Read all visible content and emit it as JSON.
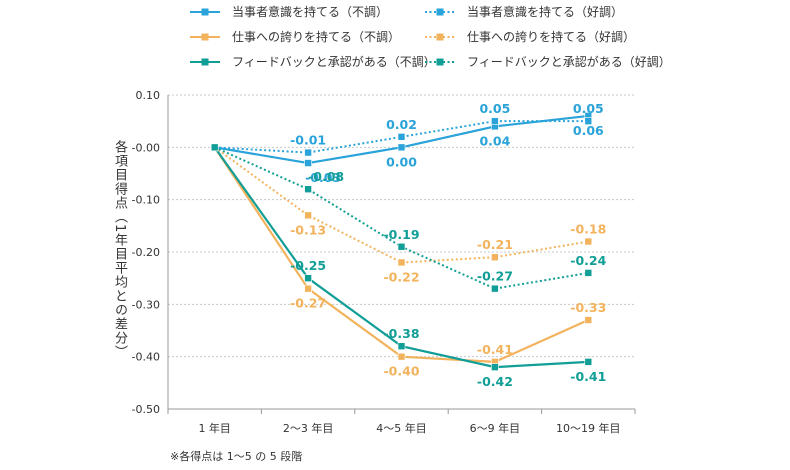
{
  "chart_data": {
    "type": "line",
    "ylabel": "各項目得点（1年目平均との差分）",
    "note": "※各得点は 1〜5 の 5 段階",
    "categories": [
      "1 年目",
      "2〜3 年目",
      "4〜5 年目",
      "6〜9 年目",
      "10〜19 年目"
    ],
    "ylim": [
      -0.5,
      0.1
    ],
    "yticks": [
      "0.10",
      "-0.00",
      "-0.10",
      "-0.20",
      "-0.30",
      "-0.40",
      "-0.50"
    ],
    "ytick_values": [
      0.1,
      0.0,
      -0.1,
      -0.2,
      -0.3,
      -0.4,
      -0.5
    ],
    "series": [
      {
        "name": "当事者意識を持てる（不調）",
        "color": "#29a3d9",
        "dashed": false,
        "values": [
          0,
          -0.03,
          0.0,
          0.04,
          0.06
        ],
        "labels": [
          "",
          "-0.03",
          "0.00",
          "0.04",
          "0.06"
        ]
      },
      {
        "name": "当事者意識を持てる（好調）",
        "color": "#29a3d9",
        "dashed": true,
        "values": [
          0,
          -0.01,
          0.02,
          0.05,
          0.05
        ],
        "labels": [
          "",
          "-0.01",
          "0.02",
          "0.05",
          "0.05"
        ]
      },
      {
        "name": "仕事への誇りを持てる（不調）",
        "color": "#f2b35c",
        "dashed": false,
        "values": [
          0,
          -0.27,
          -0.4,
          -0.41,
          -0.33
        ],
        "labels": [
          "",
          "-0.27",
          "-0.40",
          "-0.41",
          "-0.33"
        ]
      },
      {
        "name": "仕事への誇りを持てる（好調）",
        "color": "#f2b35c",
        "dashed": true,
        "values": [
          0,
          -0.13,
          -0.22,
          -0.21,
          -0.18
        ],
        "labels": [
          "",
          "-0.13",
          "-0.22",
          "-0.21",
          "-0.18"
        ]
      },
      {
        "name": "フィードバックと承認がある（不調）",
        "color": "#119e96",
        "dashed": false,
        "values": [
          0,
          -0.25,
          -0.38,
          -0.42,
          -0.41
        ],
        "labels": [
          "",
          "-0.25",
          "-0.38",
          "-0.42",
          "-0.41"
        ]
      },
      {
        "name": "フィードバックと承認がある（好調）",
        "color": "#119e96",
        "dashed": true,
        "values": [
          0,
          -0.08,
          -0.19,
          -0.27,
          -0.24
        ],
        "labels": [
          "",
          "-0.08",
          "-0.19",
          "-0.27",
          "-0.24"
        ]
      }
    ]
  }
}
